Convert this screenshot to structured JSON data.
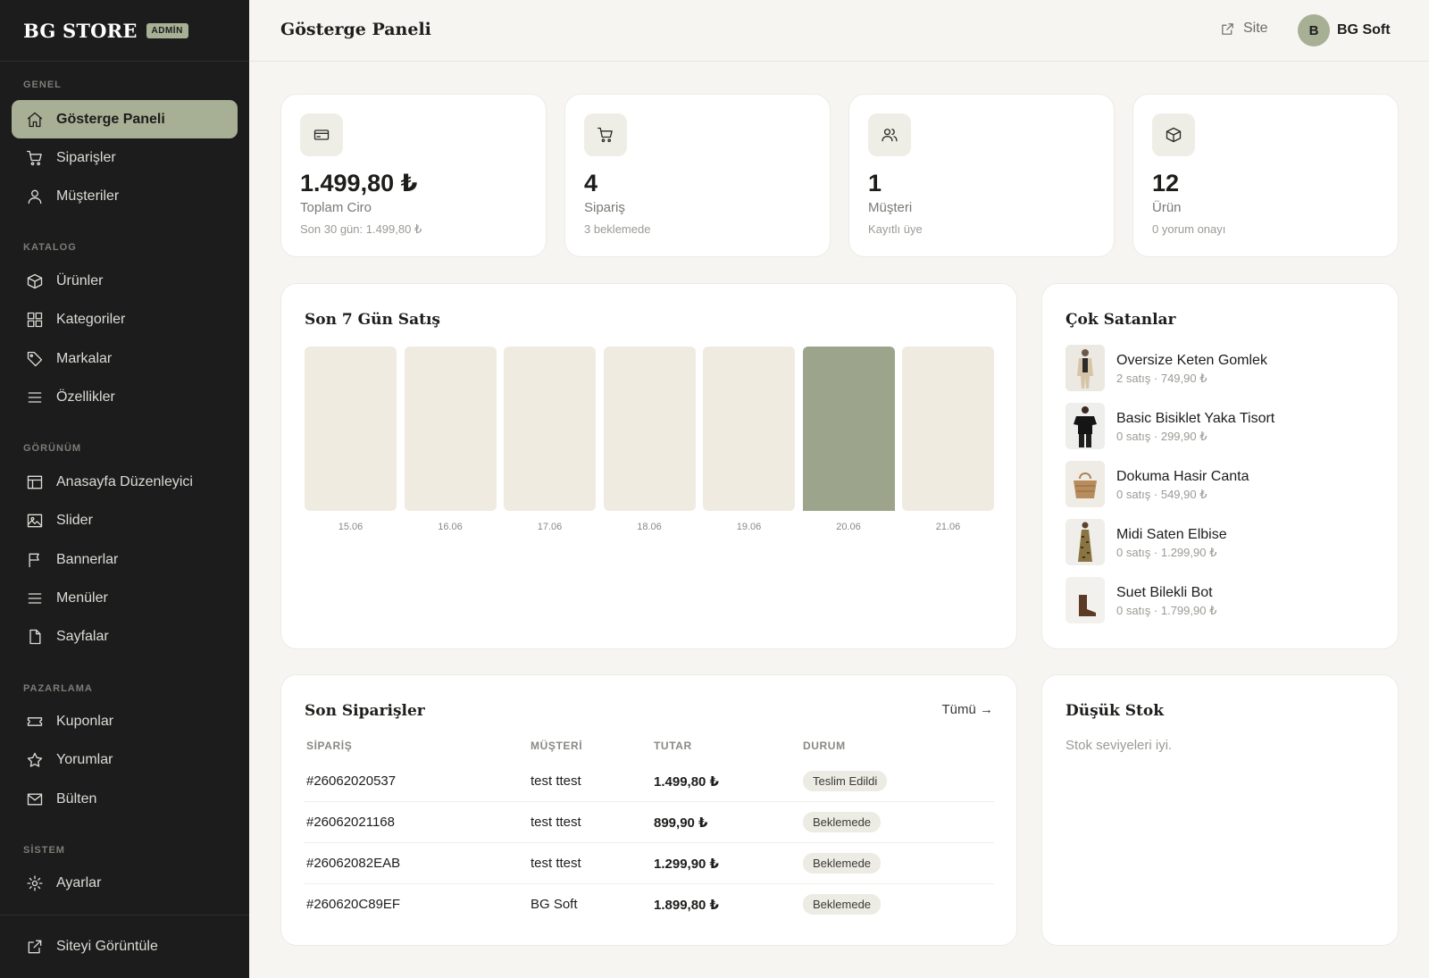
{
  "sidebar": {
    "brand": "BG STORE",
    "badge": "ADMİN",
    "sections": [
      {
        "title": "GENEL"
      },
      {
        "title": "KATALOG"
      },
      {
        "title": "GÖRÜNÜM"
      },
      {
        "title": "PAZARLAMA"
      },
      {
        "title": "SİSTEM"
      }
    ],
    "items": [
      {
        "label": "Gösterge Paneli",
        "icon": "home-icon",
        "active": true
      },
      {
        "label": "Siparişler",
        "icon": "cart-icon"
      },
      {
        "label": "Müşteriler",
        "icon": "user-icon"
      },
      {
        "label": "Ürünler",
        "icon": "box-icon"
      },
      {
        "label": "Kategoriler",
        "icon": "grid-icon"
      },
      {
        "label": "Markalar",
        "icon": "tag-icon"
      },
      {
        "label": "Özellikler",
        "icon": "list-icon"
      },
      {
        "label": "Anasayfa Düzenleyici",
        "icon": "layout-icon"
      },
      {
        "label": "Slider",
        "icon": "image-icon"
      },
      {
        "label": "Bannerlar",
        "icon": "flag-icon"
      },
      {
        "label": "Menüler",
        "icon": "menu-icon"
      },
      {
        "label": "Sayfalar",
        "icon": "file-icon"
      },
      {
        "label": "Kuponlar",
        "icon": "ticket-icon"
      },
      {
        "label": "Yorumlar",
        "icon": "star-icon"
      },
      {
        "label": "Bülten",
        "icon": "mail-icon"
      },
      {
        "label": "Ayarlar",
        "icon": "gear-icon"
      },
      {
        "label": "Siteyi Görüntüle",
        "icon": "external-link-icon"
      }
    ]
  },
  "header": {
    "title": "Gösterge Paneli",
    "site_link": "Site",
    "user_initial": "B",
    "user_name": "BG Soft"
  },
  "stats": [
    {
      "value": "1.499,80 ₺",
      "label": "Toplam Ciro",
      "sub": "Son 30 gün: 1.499,80 ₺",
      "icon": "credit-card-icon"
    },
    {
      "value": "4",
      "label": "Sipariş",
      "sub": "3 beklemede",
      "icon": "cart-icon"
    },
    {
      "value": "1",
      "label": "Müşteri",
      "sub": "Kayıtlı üye",
      "icon": "users-icon"
    },
    {
      "value": "12",
      "label": "Ürün",
      "sub": "0 yorum onayı",
      "icon": "box-icon"
    }
  ],
  "sales_card": {
    "title": "Son 7 Gün Satış"
  },
  "chart_data": {
    "type": "bar",
    "categories": [
      "15.06",
      "16.06",
      "17.06",
      "18.06",
      "19.06",
      "20.06",
      "21.06"
    ],
    "values": [
      0,
      0,
      0,
      0,
      0,
      1499.8,
      0
    ],
    "highlight_color": "#9ca58b",
    "empty_color": "#efebe0"
  },
  "bestsellers": {
    "title": "Çok Satanlar",
    "items": [
      {
        "name": "Oversize Keten Gomlek",
        "sub": "2 satış · 749,90 ₺"
      },
      {
        "name": "Basic Bisiklet Yaka Tisort",
        "sub": "0 satış · 299,90 ₺"
      },
      {
        "name": "Dokuma Hasir Canta",
        "sub": "0 satış · 549,90 ₺"
      },
      {
        "name": "Midi Saten Elbise",
        "sub": "0 satış · 1.299,90 ₺"
      },
      {
        "name": "Suet Bilekli Bot",
        "sub": "0 satış · 1.799,90 ₺"
      }
    ]
  },
  "orders": {
    "title": "Son Siparişler",
    "all_link": "Tümü →",
    "columns": [
      "SİPARİŞ",
      "MÜŞTERİ",
      "TUTAR",
      "DURUM"
    ],
    "rows": [
      {
        "id": "#26062020537",
        "customer": "test ttest",
        "amount": "1.499,80 ₺",
        "status": "Teslim Edildi"
      },
      {
        "id": "#26062021168",
        "customer": "test ttest",
        "amount": "899,90 ₺",
        "status": "Beklemede"
      },
      {
        "id": "#26062082EAB",
        "customer": "test ttest",
        "amount": "1.299,90 ₺",
        "status": "Beklemede"
      },
      {
        "id": "#260620C89EF",
        "customer": "BG Soft",
        "amount": "1.899,80 ₺",
        "status": "Beklemede"
      }
    ]
  },
  "low_stock": {
    "title": "Düşük Stok",
    "message": "Stok seviyeleri iyi."
  }
}
